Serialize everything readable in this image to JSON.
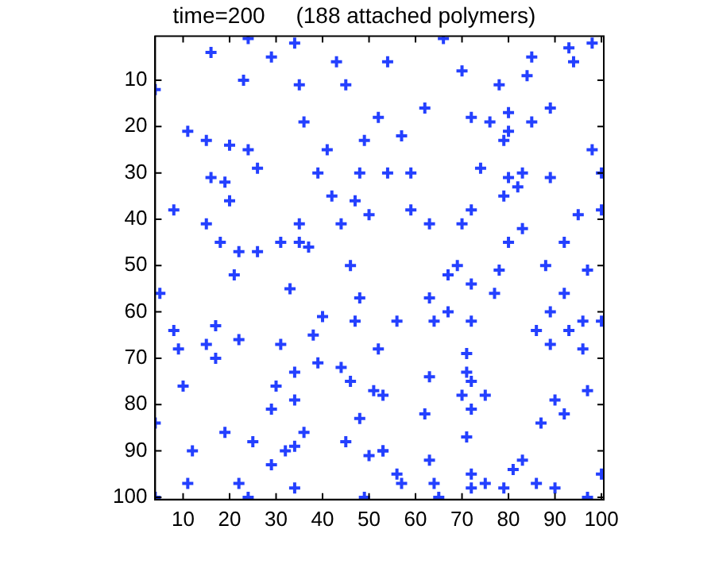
{
  "chart_data": {
    "type": "scatter",
    "title": "time=200     (188 attached polymers)",
    "xlim": [
      4,
      100.5
    ],
    "ylim": [
      100.5,
      0.5
    ],
    "xticks": [
      10,
      20,
      30,
      40,
      50,
      60,
      70,
      80,
      90,
      100
    ],
    "yticks": [
      10,
      20,
      30,
      40,
      50,
      60,
      70,
      80,
      90,
      100
    ],
    "grid": false,
    "legend": false,
    "marker": "cross",
    "series": [
      {
        "color": "#2440ff",
        "x": [
          24,
          34,
          16,
          29,
          43,
          23,
          35,
          45,
          4,
          36,
          52,
          11,
          15,
          20,
          24,
          41,
          49,
          26,
          39,
          48,
          16,
          19,
          42,
          47,
          20,
          8,
          50,
          15,
          35,
          44,
          18,
          31,
          37,
          22,
          26,
          35,
          66,
          93,
          98,
          54,
          94,
          85,
          70,
          84,
          78,
          62,
          72,
          76,
          80,
          85,
          89,
          57,
          80,
          79,
          98,
          54,
          59,
          74,
          83,
          80,
          82,
          79,
          89,
          100,
          59,
          63,
          72,
          70,
          95,
          100,
          83,
          80,
          92,
          46,
          21,
          5,
          33,
          48,
          40,
          47,
          8,
          17,
          22,
          38,
          9,
          15,
          17,
          31,
          52,
          39,
          44,
          34,
          46,
          10,
          30,
          51,
          34,
          29,
          48,
          4,
          19,
          36,
          25,
          32,
          34,
          45,
          12,
          50,
          53,
          29,
          11,
          22,
          34,
          24,
          49,
          4,
          67,
          69,
          78,
          88,
          97,
          72,
          77,
          92,
          63,
          89,
          64,
          67,
          72,
          56,
          86,
          93,
          96,
          100,
          89,
          96,
          71,
          71,
          63,
          72,
          53,
          70,
          75,
          97,
          90,
          92,
          72,
          62,
          87,
          71,
          53,
          63,
          83,
          81,
          72,
          56,
          57,
          75,
          64,
          86,
          90,
          100,
          65,
          72,
          79,
          97
        ],
        "values": [
          1,
          2,
          4,
          5,
          6,
          10,
          11,
          11,
          12,
          19,
          18,
          21,
          23,
          24,
          25,
          25,
          23,
          29,
          30,
          30,
          31,
          32,
          35,
          36,
          36,
          38,
          39,
          41,
          41,
          41,
          45,
          45,
          46,
          47,
          47,
          45,
          1,
          3,
          2,
          6,
          6,
          5,
          8,
          9,
          11,
          16,
          18,
          19,
          17,
          19,
          16,
          22,
          21,
          23,
          25,
          30,
          30,
          29,
          30,
          31,
          33,
          35,
          31,
          30,
          38,
          41,
          38,
          41,
          39,
          38,
          42,
          45,
          45,
          50,
          52,
          56,
          55,
          57,
          61,
          62,
          64,
          63,
          66,
          65,
          68,
          67,
          70,
          67,
          68,
          71,
          72,
          73,
          75,
          76,
          76,
          77,
          79,
          81,
          83,
          84,
          86,
          86,
          88,
          90,
          89,
          88,
          90,
          91,
          90,
          93,
          97,
          97,
          98,
          100,
          100,
          100,
          52,
          50,
          51,
          50,
          51,
          54,
          56,
          56,
          57,
          60,
          62,
          60,
          62,
          62,
          64,
          64,
          62,
          62,
          67,
          68,
          69,
          73,
          74,
          75,
          78,
          78,
          78,
          77,
          79,
          82,
          81,
          82,
          84,
          87,
          90,
          92,
          92,
          94,
          95,
          95,
          97,
          97,
          97,
          97,
          98,
          95,
          100,
          98,
          98,
          100
        ]
      }
    ]
  }
}
